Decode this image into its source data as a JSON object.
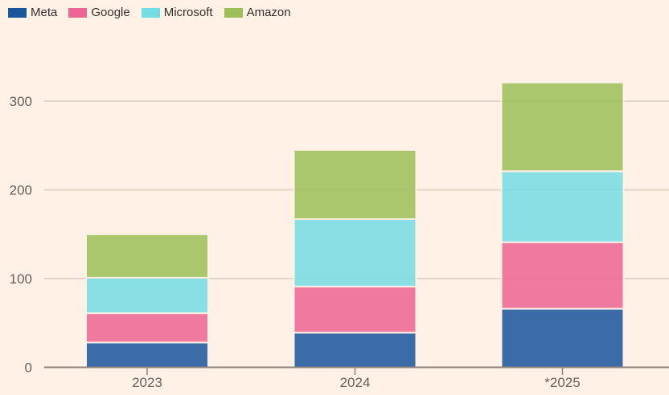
{
  "page": {
    "background_color": "#fff1e5",
    "legend_text_color": "#33302e",
    "axis_label_color": "#66605c",
    "gridline_color": "#d9cabc",
    "axis_line_color": "#8d847c"
  },
  "legend": {
    "position": "top-left",
    "items": [
      {
        "label": "Meta",
        "color": "#1a559c"
      },
      {
        "label": "Google",
        "color": "#ed6593"
      },
      {
        "label": "Microsoft",
        "color": "#74dce4"
      },
      {
        "label": "Amazon",
        "color": "#9cbf59"
      }
    ]
  },
  "chart_data": {
    "type": "bar",
    "stacked": true,
    "categories": [
      "2023",
      "2024",
      "*2025"
    ],
    "series": [
      {
        "name": "Meta",
        "color": "#1a559c",
        "values": [
          28,
          39,
          66
        ]
      },
      {
        "name": "Google",
        "color": "#ed6593",
        "values": [
          33,
          52,
          75
        ]
      },
      {
        "name": "Microsoft",
        "color": "#74dce4",
        "values": [
          40,
          76,
          80
        ]
      },
      {
        "name": "Amazon",
        "color": "#9cbf59",
        "values": [
          49,
          78,
          100
        ]
      }
    ],
    "totals": [
      150,
      245,
      321
    ],
    "title": "",
    "xlabel": "",
    "ylabel": "",
    "yticks": [
      0,
      100,
      200,
      300
    ],
    "ytick_labels": [
      "0",
      "100",
      "200",
      "300"
    ],
    "ylim": [
      0,
      330
    ],
    "grid": "horizontal",
    "legend_position": "top-left",
    "bar_fill_opacity": 0.85,
    "bar_separator_color": "#fff1e5"
  }
}
